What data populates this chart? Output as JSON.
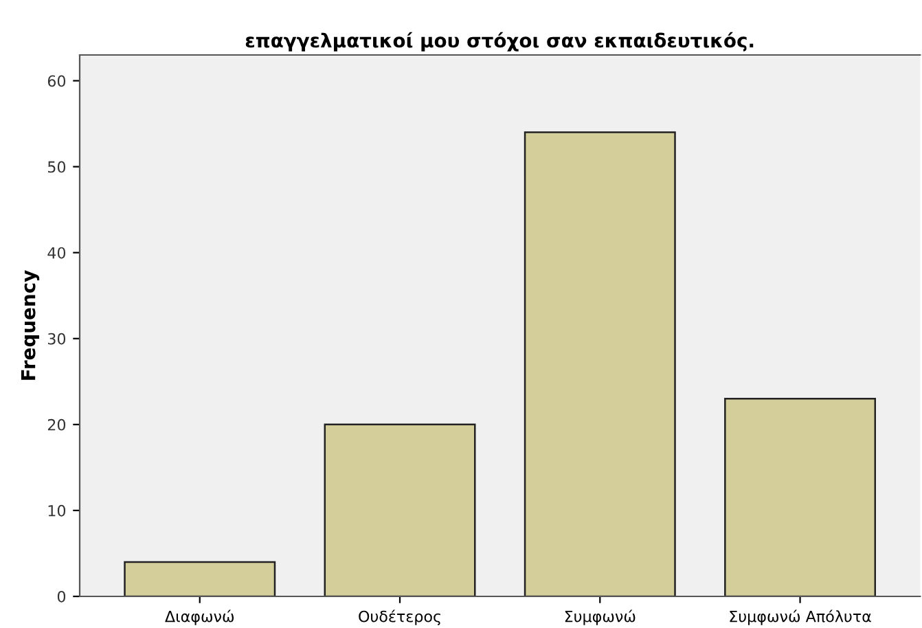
{
  "chart_data": {
    "type": "bar",
    "title": "επαγγελματικοί μου στόχοι σαν εκπαιδευτικός.",
    "ylabel": "Frequency",
    "categories": [
      "Διαφωνώ",
      "Ουδέτερος",
      "Συμφωνώ",
      "Συμφωνώ Απόλυτα"
    ],
    "values": [
      4,
      20,
      54,
      23
    ],
    "color": "#d3ce9a",
    "ylim": [
      0,
      63
    ],
    "yticks": [
      0,
      10,
      20,
      30,
      40,
      50,
      60
    ],
    "grid": false,
    "legend": false
  }
}
